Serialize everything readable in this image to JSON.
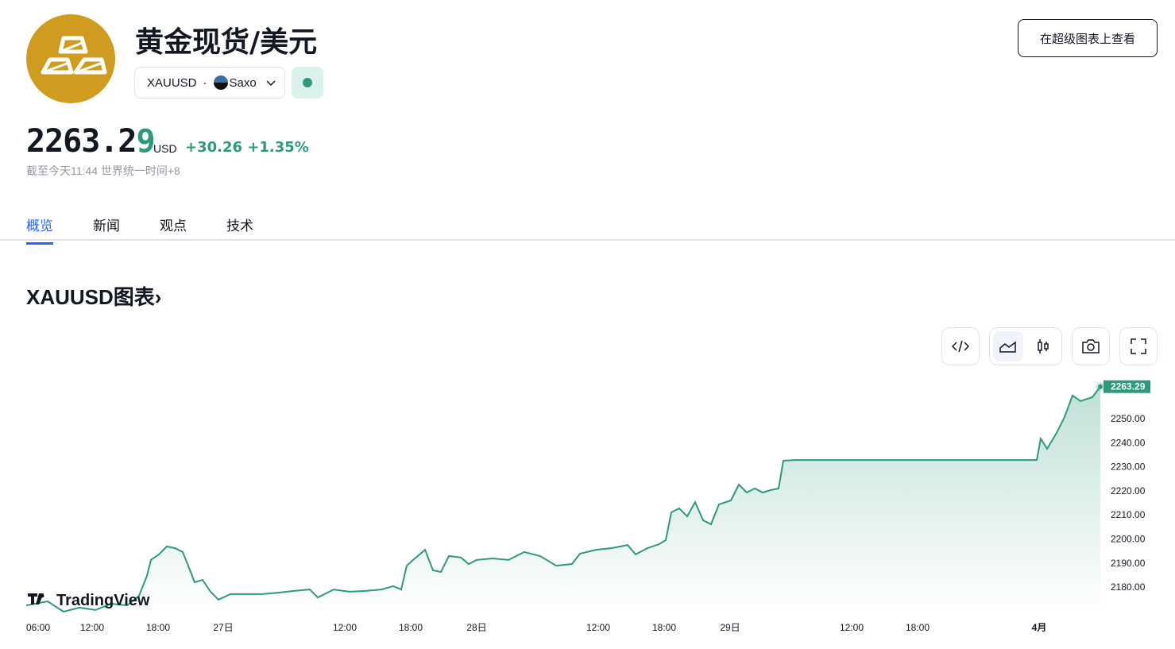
{
  "header": {
    "title": "黄金现货/美元",
    "symbol": "XAUUSD",
    "separator": "·",
    "exchange": "Saxo",
    "super_chart_button": "在超级图表上查看"
  },
  "quote": {
    "price_main": "2263.2",
    "price_last_digit": "9",
    "currency": "USD",
    "change": "+30.26",
    "change_pct": "+1.35%",
    "as_of": "截至今天11:44 世界统一时间+8"
  },
  "tabs": [
    {
      "label": "概览",
      "active": true
    },
    {
      "label": "新闻"
    },
    {
      "label": "观点"
    },
    {
      "label": "技术"
    }
  ],
  "chart_section": {
    "title": "XAUUSD图表",
    "chevron": "›",
    "watermark": "TradingView"
  },
  "toolbar": {
    "icons": [
      "embed-code-icon",
      "area-chart-icon",
      "candlestick-icon",
      "camera-icon",
      "fullscreen-icon"
    ]
  },
  "colors": {
    "accent": "#2962ff",
    "up": "#2d9a7c",
    "gold": "#d09c20"
  },
  "chart_data": {
    "type": "area",
    "last_price_label": "2263.29",
    "ylim": [
      2171,
      2266
    ],
    "y_ticks": [
      "2250.00",
      "2240.00",
      "2230.00",
      "2220.00",
      "2210.00",
      "2200.00",
      "2190.00",
      "2180.00"
    ],
    "y_tick_values": [
      2250,
      2240,
      2230,
      2220,
      2210,
      2200,
      2190,
      2180
    ],
    "x_ticks": [
      {
        "label": "06:00",
        "i": 1.5
      },
      {
        "label": "12:00",
        "i": 8.3
      },
      {
        "label": "18:00",
        "i": 16.6
      },
      {
        "label": "27日",
        "i": 24.8
      },
      {
        "label": "12:00",
        "i": 40.1
      },
      {
        "label": "18:00",
        "i": 48.4
      },
      {
        "label": "28日",
        "i": 56.7
      },
      {
        "label": "12:00",
        "i": 72
      },
      {
        "label": "18:00",
        "i": 80.3
      },
      {
        "label": "29日",
        "i": 88.6
      },
      {
        "label": "12:00",
        "i": 103.9
      },
      {
        "label": "18:00",
        "i": 112.2
      },
      {
        "label": "4月",
        "i": 127.5
      }
    ],
    "xlim": [
      0,
      135.2
    ],
    "points": [
      [
        0,
        2172.4
      ],
      [
        2.7,
        2174.1
      ],
      [
        4.7,
        2169.8
      ],
      [
        6.7,
        2171.5
      ],
      [
        8.7,
        2170.5
      ],
      [
        10.7,
        2173.1
      ],
      [
        12.7,
        2172.4
      ],
      [
        14.2,
        2176.4
      ],
      [
        15.2,
        2184.7
      ],
      [
        15.7,
        2191.3
      ],
      [
        16.7,
        2193.6
      ],
      [
        17.7,
        2196.9
      ],
      [
        18.7,
        2196.2
      ],
      [
        19.7,
        2194.6
      ],
      [
        20.7,
        2186.3
      ],
      [
        21.2,
        2182
      ],
      [
        22.2,
        2183
      ],
      [
        23.2,
        2178.1
      ],
      [
        24.2,
        2174.8
      ],
      [
        25.7,
        2177.1
      ],
      [
        27.7,
        2177.1
      ],
      [
        29.7,
        2177.1
      ],
      [
        31.7,
        2177.7
      ],
      [
        33.7,
        2178.4
      ],
      [
        35.7,
        2179
      ],
      [
        36.7,
        2175.7
      ],
      [
        38.7,
        2179
      ],
      [
        40.7,
        2178.1
      ],
      [
        42.7,
        2178.4
      ],
      [
        44.7,
        2179
      ],
      [
        46.2,
        2180.4
      ],
      [
        47.2,
        2179
      ],
      [
        47.9,
        2188.9
      ],
      [
        48.7,
        2191.3
      ],
      [
        50.2,
        2195.5
      ],
      [
        51.2,
        2187
      ],
      [
        52.2,
        2186.3
      ],
      [
        53.2,
        2192.9
      ],
      [
        54.7,
        2192.3
      ],
      [
        55.7,
        2189.6
      ],
      [
        56.7,
        2191.3
      ],
      [
        58.7,
        2191.9
      ],
      [
        60.7,
        2191.3
      ],
      [
        62.7,
        2194.6
      ],
      [
        64.7,
        2192.9
      ],
      [
        66.7,
        2188.9
      ],
      [
        68.7,
        2189.6
      ],
      [
        69.7,
        2193.9
      ],
      [
        71.7,
        2195.5
      ],
      [
        73.7,
        2196.2
      ],
      [
        75.7,
        2197.5
      ],
      [
        76.7,
        2193.6
      ],
      [
        78.2,
        2196.2
      ],
      [
        79.7,
        2197.9
      ],
      [
        80.5,
        2199.5
      ],
      [
        81.2,
        2211.1
      ],
      [
        82.2,
        2212.7
      ],
      [
        83.2,
        2209.4
      ],
      [
        84.2,
        2215.3
      ],
      [
        85.2,
        2207.8
      ],
      [
        86.2,
        2206.1
      ],
      [
        87.2,
        2214.4
      ],
      [
        88.7,
        2216
      ],
      [
        89.7,
        2222.6
      ],
      [
        90.7,
        2219.3
      ],
      [
        91.7,
        2221
      ],
      [
        92.7,
        2219.3
      ],
      [
        93.7,
        2220.3
      ],
      [
        94.7,
        2221
      ],
      [
        95.3,
        2232.5
      ],
      [
        96.7,
        2232.8
      ],
      [
        106.7,
        2232.8
      ],
      [
        116.7,
        2232.8
      ],
      [
        127.2,
        2232.8
      ],
      [
        127.7,
        2241.7
      ],
      [
        128.5,
        2237.5
      ],
      [
        129.7,
        2244.1
      ],
      [
        130.7,
        2250.7
      ],
      [
        131.7,
        2259.6
      ],
      [
        132.7,
        2257.3
      ],
      [
        134.2,
        2258.9
      ],
      [
        135.2,
        2263.29
      ]
    ]
  }
}
